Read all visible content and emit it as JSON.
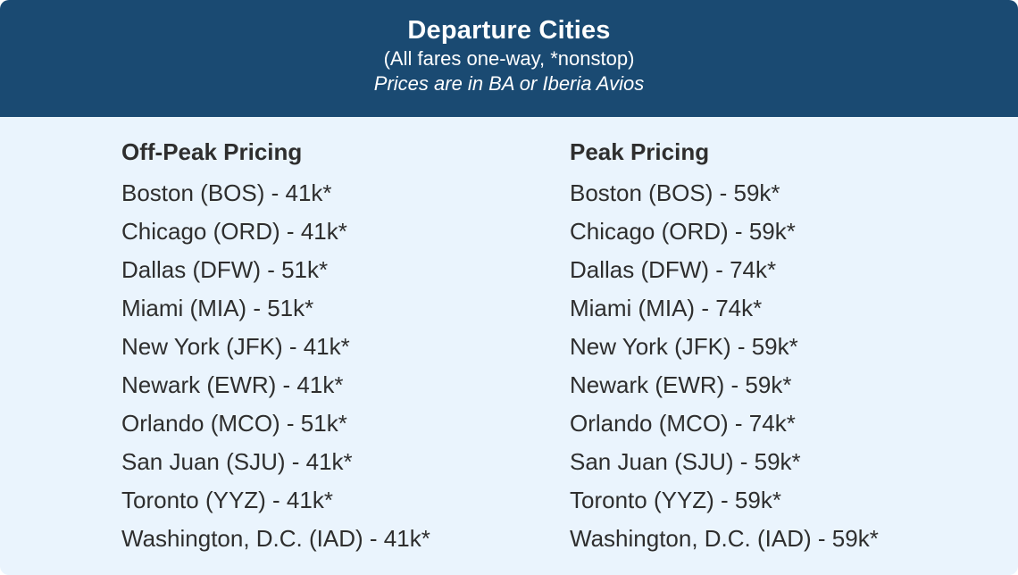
{
  "header": {
    "title": "Departure Cities",
    "subtitle": "(All fares one-way, *nonstop)",
    "note": "Prices are in BA or Iberia Avios"
  },
  "off_peak": {
    "heading": "Off-Peak Pricing",
    "rows": [
      "Boston (BOS) - 41k*",
      "Chicago (ORD) - 41k*",
      "Dallas (DFW) - 51k*",
      "Miami (MIA) - 51k*",
      "New York (JFK) - 41k*",
      "Newark (EWR) - 41k*",
      "Orlando (MCO) - 51k*",
      "San Juan (SJU) - 41k*",
      "Toronto (YYZ) - 41k*",
      "Washington, D.C. (IAD) - 41k*"
    ]
  },
  "peak": {
    "heading": "Peak Pricing",
    "rows": [
      "Boston (BOS) - 59k*",
      "Chicago (ORD) - 59k*",
      "Dallas (DFW) - 74k*",
      "Miami (MIA) - 74k*",
      "New York (JFK) - 59k*",
      "Newark (EWR) - 59k*",
      "Orlando (MCO) - 74k*",
      "San Juan (SJU) - 59k*",
      "Toronto (YYZ) - 59k*",
      "Washington, D.C. (IAD) - 59k*"
    ]
  },
  "colors": {
    "header_bg": "#1a4a72",
    "body_bg": "#eaf4fd",
    "text": "#2e2e2e"
  }
}
